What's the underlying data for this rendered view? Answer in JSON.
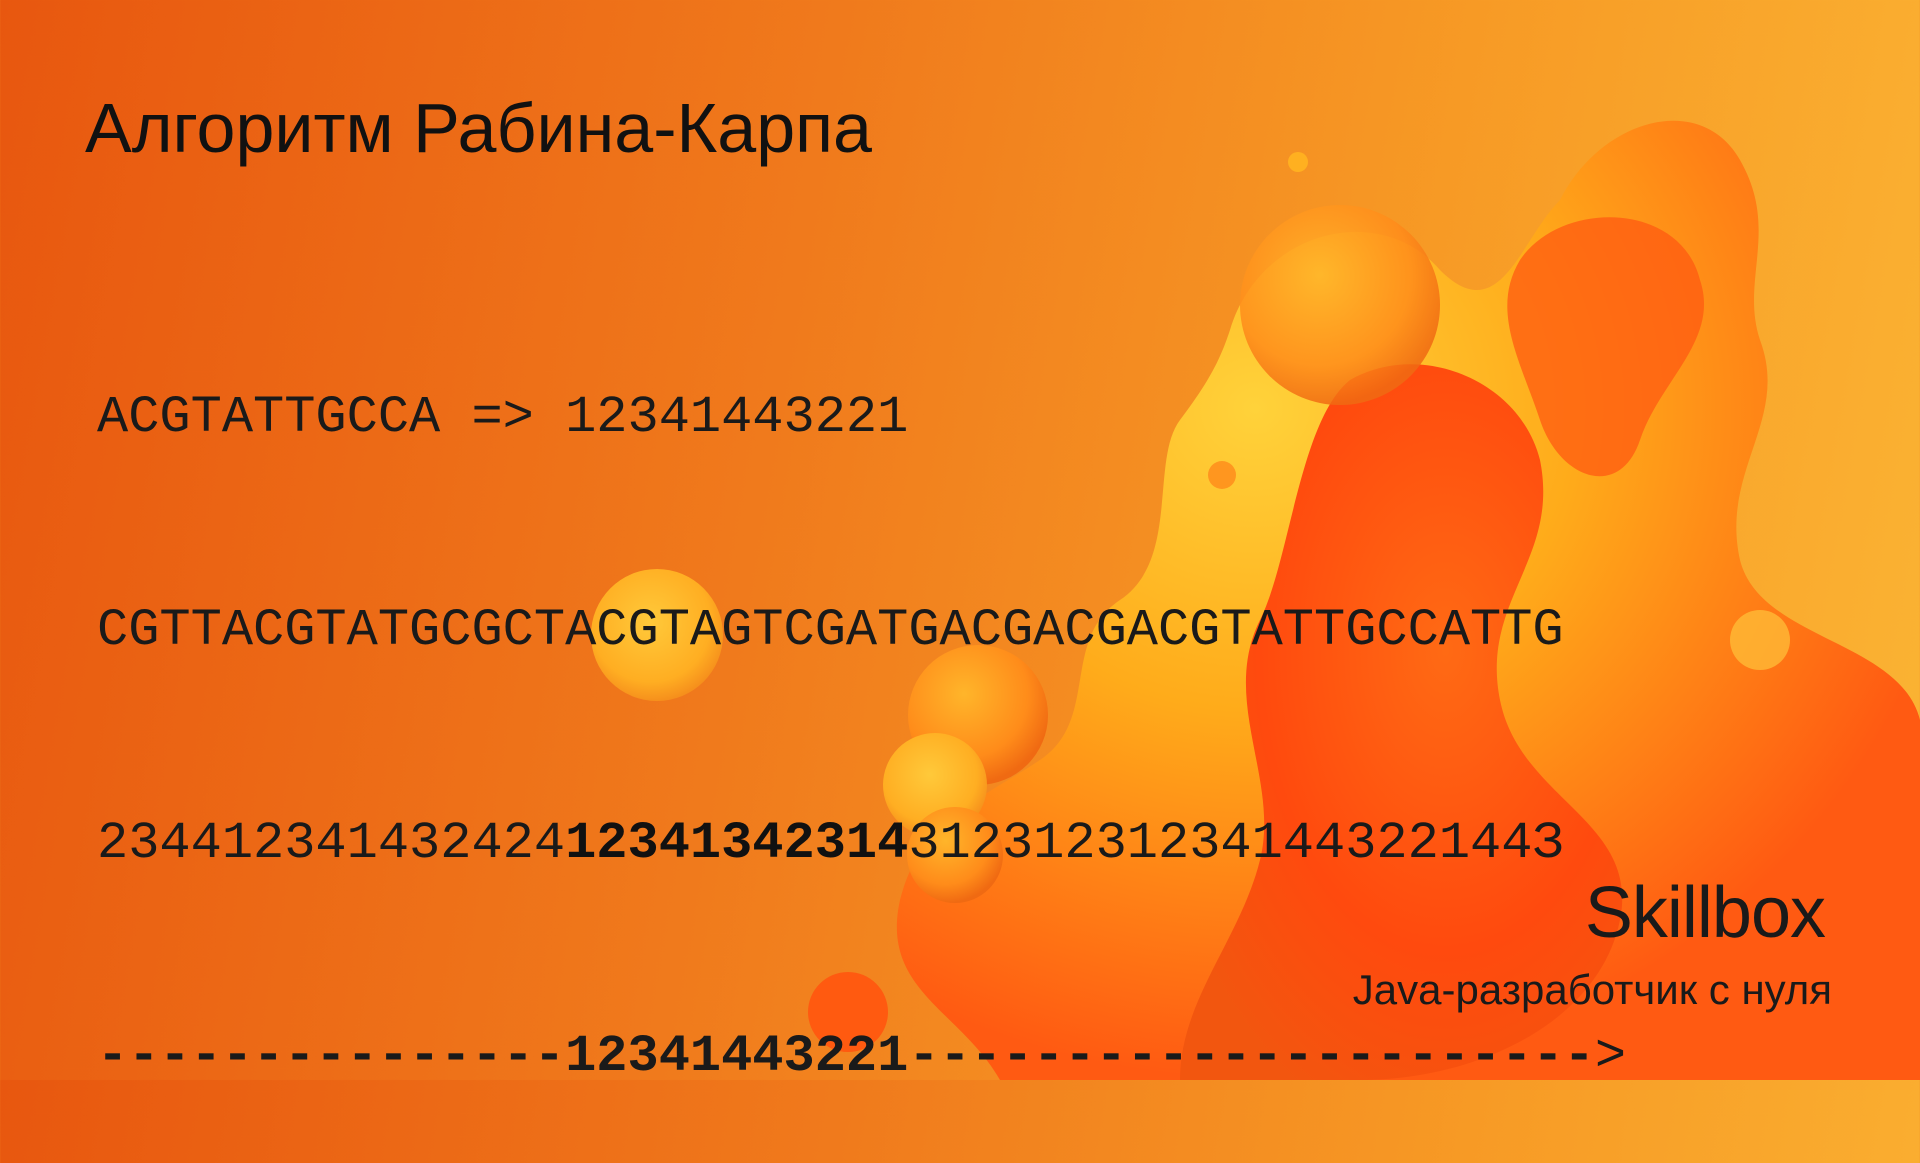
{
  "slide": {
    "title": "Алгоритм Рабина-Карпа",
    "lines": {
      "line1": "ACGTATTGCCA => 12341443221",
      "line2": "CGTTACGTATGCGCTACGTAGTCGATGACGACGACGTATTGCCATTG",
      "line3": {
        "before": "234412341432424",
        "match": "12341342314",
        "after": "31231231234144322144З"
      },
      "line4": {
        "before": "---------------",
        "match": "12341443221",
        "after": "----------------------",
        "arrow": ">"
      }
    }
  },
  "branding": {
    "logo": "Skillbox",
    "course": "Java-разработчик с нуля"
  },
  "colors": {
    "background_start": "#e8570f",
    "background_end": "#fbb534",
    "text": "#111111"
  }
}
